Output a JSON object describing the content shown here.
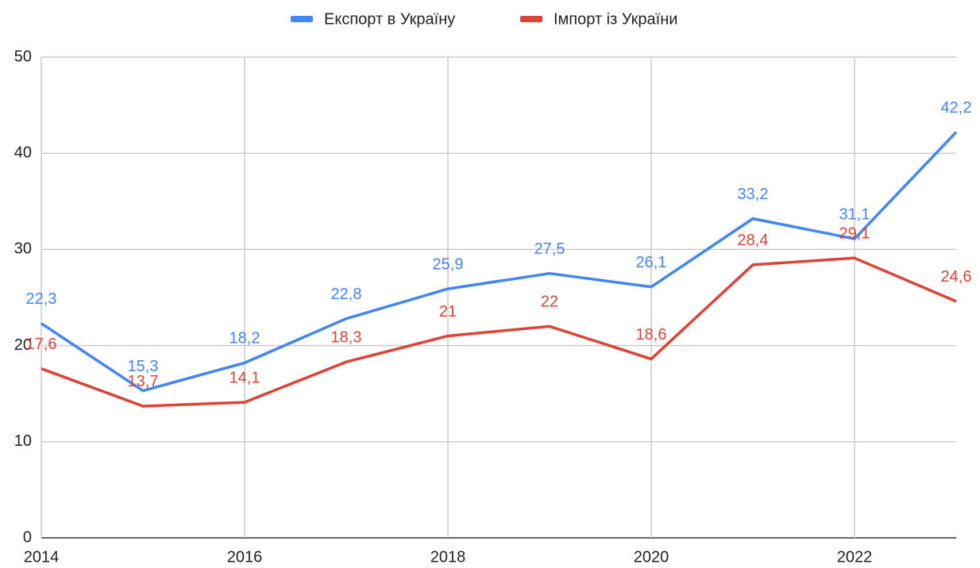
{
  "chart_data": {
    "type": "line",
    "x": [
      2014,
      2015,
      2016,
      2017,
      2018,
      2019,
      2020,
      2021,
      2022,
      2023
    ],
    "series": [
      {
        "name": "Експорт в Україну",
        "color": "#4285f4",
        "values": [
          22.3,
          15.3,
          18.2,
          22.8,
          25.9,
          27.5,
          26.1,
          33.2,
          31.1,
          42.2
        ],
        "value_labels": [
          "22,3",
          "15,3",
          "18,2",
          "22,8",
          "25,9",
          "27,5",
          "26,1",
          "33,2",
          "31,1",
          "42,2"
        ]
      },
      {
        "name": "Імпорт із України",
        "color": "#db4437",
        "values": [
          17.6,
          13.7,
          14.1,
          18.3,
          21,
          22,
          18.6,
          28.4,
          29.1,
          24.6
        ],
        "value_labels": [
          "17,6",
          "13,7",
          "14,1",
          "18,3",
          "21",
          "22",
          "18,6",
          "28,4",
          "29,1",
          "24,6"
        ]
      }
    ],
    "xlim": [
      2014,
      2023
    ],
    "xticks": [
      2014,
      2016,
      2018,
      2020,
      2022
    ],
    "ylim": [
      0,
      50
    ],
    "yticks": [
      0,
      10,
      20,
      30,
      40,
      50
    ],
    "grid": true,
    "legend": "top"
  }
}
